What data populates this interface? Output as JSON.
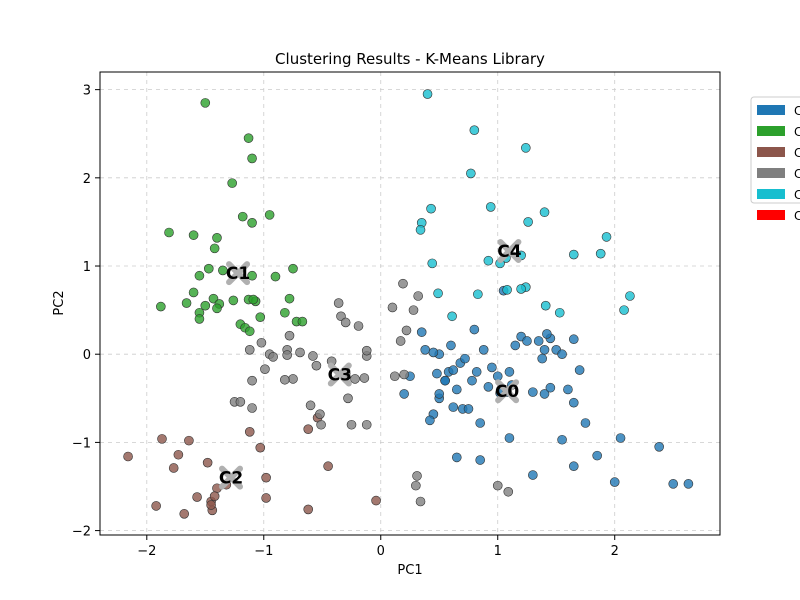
{
  "chart_data": {
    "type": "scatter",
    "title": "Clustering Results - K-Means Library",
    "xlabel": "PC1",
    "ylabel": "PC2",
    "xlim": [
      -2.4,
      2.9
    ],
    "ylim": [
      -2.05,
      3.2
    ],
    "xticks": [
      -2,
      -1,
      0,
      1,
      2
    ],
    "yticks": [
      -2,
      -1,
      0,
      1,
      2,
      3
    ],
    "xtick_labels": [
      "−2",
      "−1",
      "0",
      "1",
      "2"
    ],
    "ytick_labels": [
      "−2",
      "−1",
      "0",
      "1",
      "2",
      "3"
    ],
    "grid": true,
    "legend_position": "outside-top-right",
    "legend": [
      {
        "label": "C",
        "color": "#1f77b4"
      },
      {
        "label": "C",
        "color": "#2ca02c"
      },
      {
        "label": "C",
        "color": "#8c564b"
      },
      {
        "label": "C",
        "color": "#7f7f7f"
      },
      {
        "label": "C",
        "color": "#17becf"
      },
      {
        "label": "C",
        "color": "#ff0000"
      }
    ],
    "series": [
      {
        "color": "#1f77b4",
        "points": [
          [
            0.45,
            -0.68
          ],
          [
            0.48,
            -0.22
          ],
          [
            0.5,
            -0.5
          ],
          [
            0.55,
            -0.3
          ],
          [
            0.6,
            0.1
          ],
          [
            0.62,
            -0.6
          ],
          [
            0.65,
            -0.4
          ],
          [
            0.68,
            -0.1
          ],
          [
            0.7,
            -0.62
          ],
          [
            0.75,
            -0.62
          ],
          [
            0.78,
            -0.3
          ],
          [
            0.82,
            -0.2
          ],
          [
            0.85,
            -0.78
          ],
          [
            0.88,
            0.05
          ],
          [
            0.92,
            -0.37
          ],
          [
            0.95,
            -0.15
          ],
          [
            1.0,
            -0.25
          ],
          [
            1.05,
            0.72
          ],
          [
            1.1,
            -0.2
          ],
          [
            1.12,
            -0.35
          ],
          [
            1.15,
            0.1
          ],
          [
            1.2,
            0.2
          ],
          [
            1.25,
            0.15
          ],
          [
            1.3,
            -0.43
          ],
          [
            1.35,
            0.15
          ],
          [
            1.4,
            -0.45
          ],
          [
            1.45,
            -0.38
          ],
          [
            1.5,
            0.05
          ],
          [
            1.55,
            -0.97
          ],
          [
            1.6,
            -0.4
          ],
          [
            1.65,
            -0.55
          ],
          [
            1.7,
            -0.18
          ],
          [
            1.75,
            -0.78
          ],
          [
            1.85,
            -1.15
          ],
          [
            1.65,
            -1.27
          ],
          [
            1.3,
            -1.37
          ],
          [
            1.1,
            -0.95
          ],
          [
            0.85,
            -1.2
          ],
          [
            0.65,
            -1.17
          ],
          [
            2.0,
            -1.45
          ],
          [
            2.05,
            -0.95
          ],
          [
            2.38,
            -1.05
          ],
          [
            2.5,
            -1.47
          ],
          [
            2.63,
            -1.47
          ],
          [
            0.35,
            0.25
          ],
          [
            0.38,
            0.05
          ],
          [
            0.5,
            0.0
          ],
          [
            0.58,
            -0.2
          ],
          [
            0.72,
            -0.05
          ],
          [
            1.45,
            0.18
          ],
          [
            1.42,
            0.23
          ],
          [
            1.65,
            0.17
          ],
          [
            1.38,
            -0.05
          ],
          [
            0.2,
            -0.45
          ],
          [
            0.25,
            -0.25
          ],
          [
            0.5,
            -0.45
          ],
          [
            0.55,
            -0.3
          ],
          [
            0.42,
            -0.75
          ],
          [
            0.8,
            0.28
          ],
          [
            0.45,
            0.02
          ],
          [
            0.62,
            -0.18
          ],
          [
            1.02,
            -0.44
          ],
          [
            1.08,
            -0.43
          ],
          [
            1.4,
            0.05
          ],
          [
            1.55,
            0.0
          ]
        ]
      },
      {
        "color": "#2ca02c",
        "points": [
          [
            -1.5,
            2.85
          ],
          [
            -1.13,
            2.45
          ],
          [
            -1.1,
            2.22
          ],
          [
            -1.27,
            1.94
          ],
          [
            -1.1,
            1.49
          ],
          [
            -1.18,
            1.56
          ],
          [
            -0.95,
            1.58
          ],
          [
            -1.81,
            1.38
          ],
          [
            -1.6,
            1.35
          ],
          [
            -1.4,
            1.32
          ],
          [
            -1.42,
            1.2
          ],
          [
            -1.55,
            0.89
          ],
          [
            -1.47,
            0.97
          ],
          [
            -1.35,
            0.95
          ],
          [
            -1.1,
            0.89
          ],
          [
            -0.9,
            0.88
          ],
          [
            -0.75,
            0.97
          ],
          [
            -1.6,
            0.7
          ],
          [
            -1.43,
            0.63
          ],
          [
            -1.38,
            0.57
          ],
          [
            -1.26,
            0.61
          ],
          [
            -1.13,
            0.62
          ],
          [
            -1.07,
            0.6
          ],
          [
            -1.03,
            0.42
          ],
          [
            -1.2,
            0.34
          ],
          [
            -1.16,
            0.3
          ],
          [
            -1.12,
            0.26
          ],
          [
            -1.66,
            0.58
          ],
          [
            -1.88,
            0.54
          ],
          [
            -1.5,
            0.55
          ],
          [
            -1.4,
            0.52
          ],
          [
            -1.55,
            0.47
          ],
          [
            -1.55,
            0.4
          ],
          [
            -0.78,
            0.63
          ],
          [
            -0.82,
            0.47
          ],
          [
            -0.72,
            0.37
          ],
          [
            -0.67,
            0.37
          ],
          [
            -1.09,
            0.62
          ]
        ]
      },
      {
        "color": "#8c564b",
        "points": [
          [
            -2.16,
            -1.16
          ],
          [
            -1.87,
            -0.96
          ],
          [
            -1.73,
            -1.14
          ],
          [
            -1.77,
            -1.29
          ],
          [
            -1.64,
            -0.98
          ],
          [
            -1.48,
            -1.23
          ],
          [
            -1.92,
            -1.72
          ],
          [
            -1.68,
            -1.81
          ],
          [
            -1.57,
            -1.62
          ],
          [
            -1.45,
            -1.67
          ],
          [
            -1.4,
            -1.52
          ],
          [
            -1.44,
            -1.77
          ],
          [
            -1.45,
            -1.71
          ],
          [
            -1.42,
            -1.61
          ],
          [
            -1.32,
            -1.48
          ],
          [
            -1.12,
            -0.88
          ],
          [
            -1.03,
            -1.06
          ],
          [
            -0.98,
            -1.4
          ],
          [
            -0.98,
            -1.63
          ],
          [
            -0.62,
            -0.85
          ],
          [
            -0.62,
            -1.76
          ],
          [
            -0.54,
            -0.72
          ],
          [
            -0.45,
            -1.27
          ],
          [
            -0.04,
            -1.66
          ]
        ]
      },
      {
        "color": "#7f7f7f",
        "points": [
          [
            -1.12,
            0.05
          ],
          [
            -1.02,
            0.13
          ],
          [
            -0.95,
            0.0
          ],
          [
            -0.99,
            -0.17
          ],
          [
            -1.1,
            -0.3
          ],
          [
            -0.92,
            -0.03
          ],
          [
            -0.78,
            0.21
          ],
          [
            -0.8,
            0.05
          ],
          [
            -0.8,
            -0.01
          ],
          [
            -0.75,
            -0.28
          ],
          [
            -0.82,
            -0.29
          ],
          [
            -0.69,
            0.02
          ],
          [
            -0.58,
            -0.02
          ],
          [
            -0.55,
            -0.13
          ],
          [
            -0.6,
            -0.58
          ],
          [
            -0.51,
            -0.8
          ],
          [
            -0.52,
            -0.68
          ],
          [
            -0.3,
            -0.22
          ],
          [
            -0.36,
            0.58
          ],
          [
            -0.34,
            0.43
          ],
          [
            -0.3,
            0.36
          ],
          [
            -0.19,
            0.32
          ],
          [
            -0.28,
            -0.5
          ],
          [
            -0.25,
            -0.8
          ],
          [
            -0.12,
            -0.8
          ],
          [
            -0.12,
            -0.02
          ],
          [
            -0.14,
            -0.27
          ],
          [
            -0.22,
            -0.28
          ],
          [
            -0.12,
            0.04
          ],
          [
            -1.25,
            -0.54
          ],
          [
            -1.2,
            -0.54
          ],
          [
            -1.1,
            -0.61
          ],
          [
            0.1,
            0.53
          ],
          [
            0.19,
            0.8
          ],
          [
            0.28,
            0.5
          ],
          [
            0.32,
            0.66
          ],
          [
            0.22,
            0.27
          ],
          [
            0.17,
            0.15
          ],
          [
            0.2,
            -0.23
          ],
          [
            0.12,
            -0.25
          ],
          [
            0.31,
            -1.38
          ],
          [
            0.3,
            -1.49
          ],
          [
            0.34,
            -1.67
          ],
          [
            1.0,
            -1.49
          ],
          [
            1.09,
            -1.56
          ],
          [
            -0.42,
            -0.08
          ]
        ]
      },
      {
        "color": "#17becf",
        "points": [
          [
            0.4,
            2.95
          ],
          [
            0.8,
            2.54
          ],
          [
            1.24,
            2.34
          ],
          [
            0.77,
            2.05
          ],
          [
            0.94,
            1.67
          ],
          [
            1.4,
            1.61
          ],
          [
            1.26,
            1.5
          ],
          [
            0.43,
            1.65
          ],
          [
            0.35,
            1.49
          ],
          [
            0.34,
            1.41
          ],
          [
            0.44,
            1.03
          ],
          [
            0.92,
            1.06
          ],
          [
            1.07,
            1.09
          ],
          [
            1.02,
            1.03
          ],
          [
            1.2,
            1.12
          ],
          [
            1.65,
            1.13
          ],
          [
            1.93,
            1.33
          ],
          [
            1.88,
            1.14
          ],
          [
            0.83,
            0.68
          ],
          [
            1.08,
            0.73
          ],
          [
            1.24,
            0.76
          ],
          [
            1.2,
            0.74
          ],
          [
            1.41,
            0.55
          ],
          [
            1.53,
            0.47
          ],
          [
            2.13,
            0.66
          ],
          [
            2.08,
            0.5
          ],
          [
            0.49,
            0.69
          ],
          [
            0.61,
            0.43
          ]
        ]
      }
    ],
    "centroids": [
      {
        "label": "C0",
        "x": 1.08,
        "y": -0.42
      },
      {
        "label": "C1",
        "x": -1.22,
        "y": 0.92
      },
      {
        "label": "C2",
        "x": -1.28,
        "y": -1.4
      },
      {
        "label": "C3",
        "x": -0.35,
        "y": -0.23
      },
      {
        "label": "C4",
        "x": 1.1,
        "y": 1.17
      }
    ]
  }
}
